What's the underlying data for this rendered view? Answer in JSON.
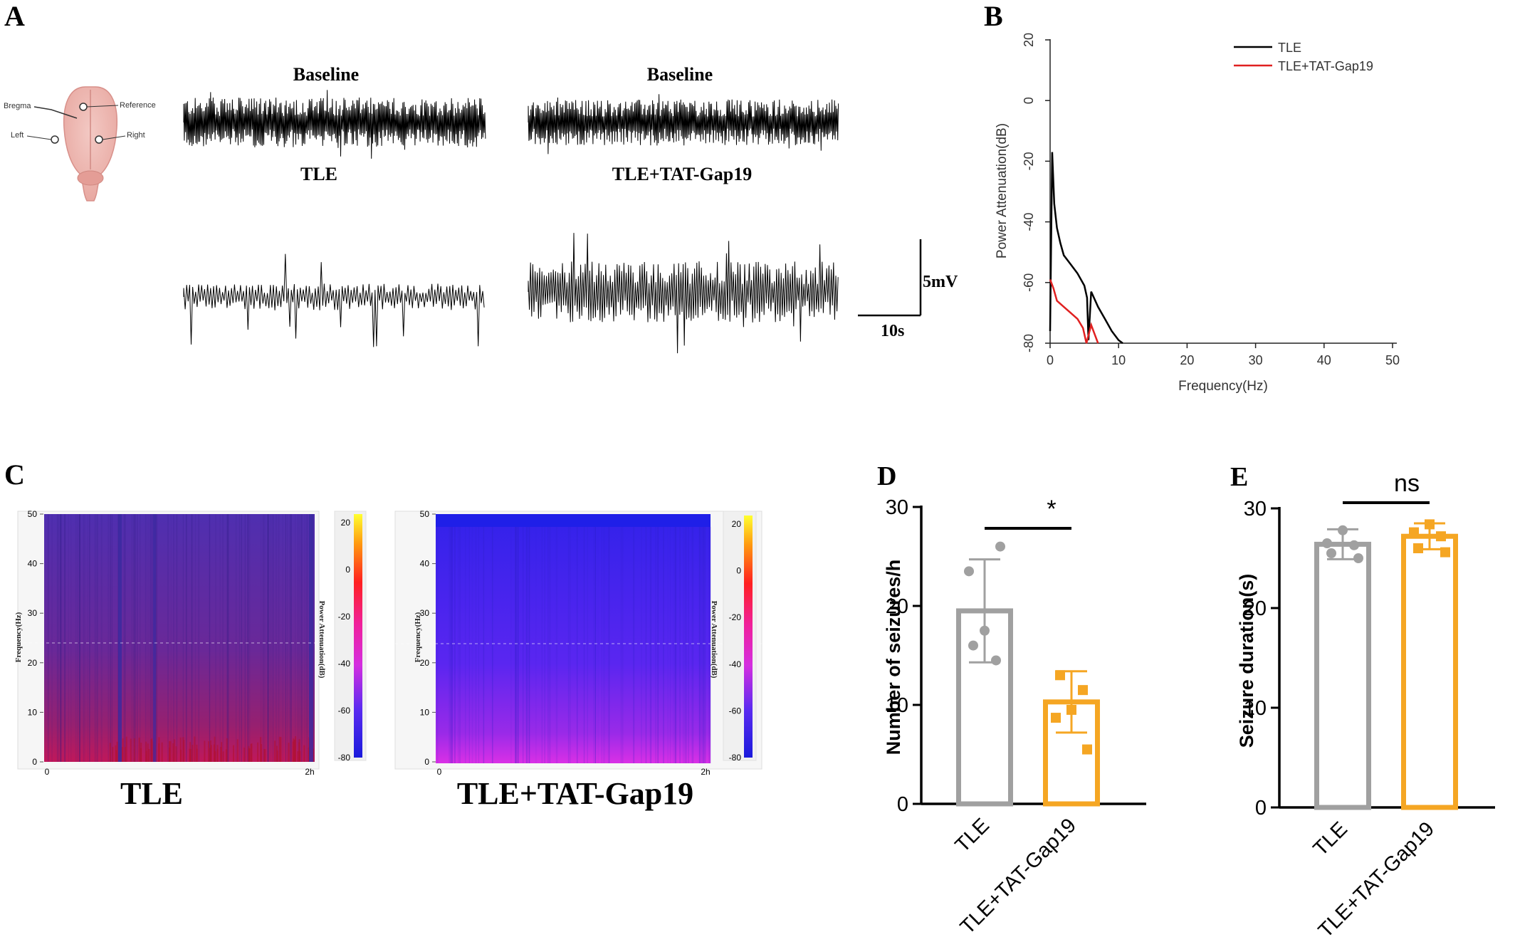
{
  "panels": {
    "A": {
      "letter": "A",
      "electrodes": [
        "Bregma",
        "Reference",
        "Left",
        "Right"
      ],
      "trace_titles": {
        "baseline_left": "Baseline",
        "baseline_right": "Baseline",
        "tle": "TLE",
        "tle_gap19": "TLE+TAT-Gap19"
      },
      "scale_bar": {
        "voltage": "5mV",
        "time": "10s"
      }
    },
    "B": {
      "letter": "B"
    },
    "C": {
      "letter": "C",
      "left_title": "TLE",
      "right_title": "TLE+TAT-Gap19",
      "y_axis_label": "Frequency(Hz)",
      "colorbar_label": "Power Attenuation(dB)",
      "y_ticks": [
        "0",
        "10",
        "20",
        "30",
        "40",
        "50"
      ],
      "x_ticks": [
        "0",
        "2h"
      ],
      "colorbar_ticks": [
        "20",
        "0",
        "-20",
        "-40",
        "-60",
        "-80"
      ],
      "colors": {
        "tle_top": "#5c2aa8",
        "tle_bottom": "#c0185a",
        "gap_top": "#3a22ee",
        "gap_bottom": "#d22ee0"
      }
    },
    "D": {
      "letter": "D"
    },
    "E": {
      "letter": "E"
    }
  },
  "chart_data": [
    {
      "id": "B",
      "type": "line",
      "xlabel": "Frequency(Hz)",
      "ylabel": "Power Attenuation(dB)",
      "xlim": [
        0,
        50
      ],
      "ylim": [
        -80,
        20
      ],
      "x_ticks": [
        "0",
        "10",
        "20",
        "30",
        "40",
        "50"
      ],
      "y_ticks": [
        "20",
        "0",
        "-20",
        "-40",
        "-60",
        "-80"
      ],
      "legend_position": "top-right",
      "series": [
        {
          "name": "TLE",
          "color": "#000000",
          "x": [
            0,
            0.3,
            0.6,
            1.0,
            1.5,
            2.0,
            3.0,
            4.0,
            5.0,
            5.4,
            5.6,
            6.0,
            7.0,
            8.0,
            9.0,
            10.0,
            10.6
          ],
          "y": [
            -76,
            -17,
            -34,
            -42,
            -47,
            -51,
            -54,
            -57,
            -61,
            -65,
            -79,
            -63,
            -68,
            -72,
            -76,
            -79,
            -80
          ]
        },
        {
          "name": "TLE+TAT-Gap19",
          "color": "#e02020",
          "x": [
            0,
            0.5,
            1.0,
            2.0,
            3.0,
            4.0,
            4.8,
            5.3,
            6.0,
            6.5,
            7.0
          ],
          "y": [
            -59,
            -62,
            -66,
            -68,
            -70,
            -72,
            -75,
            -80,
            -74,
            -77,
            -80
          ]
        }
      ]
    },
    {
      "id": "D",
      "type": "bar",
      "categories": [
        "TLE",
        "TLE+TAT-Gap19"
      ],
      "values": [
        19.5,
        10.3
      ],
      "error": [
        5.2,
        3.1
      ],
      "points": [
        [
          16,
          14.5,
          17.5,
          23.5,
          26
        ],
        [
          13,
          11.5,
          9.5,
          8.7,
          5.5
        ]
      ],
      "colors": [
        "#a0a0a0",
        "#f5a623"
      ],
      "ylabel": "Number of seizures/h",
      "ylim": [
        0,
        30
      ],
      "y_ticks": [
        "0",
        "10",
        "20",
        "30"
      ],
      "significance": "*"
    },
    {
      "id": "E",
      "type": "bar",
      "categories": [
        "TLE",
        "TLE+TAT-Gap19"
      ],
      "values": [
        26.4,
        27.2
      ],
      "error": [
        1.5,
        1.3
      ],
      "points": [
        [
          25.5,
          26.3,
          27.8,
          26.5,
          25.0
        ],
        [
          26.0,
          27.2,
          28.4,
          27.6,
          25.6
        ]
      ],
      "colors": [
        "#a0a0a0",
        "#f5a623"
      ],
      "ylabel": "Seizure duration(s)",
      "ylim": [
        0,
        30
      ],
      "y_ticks": [
        "0",
        "10",
        "20",
        "30"
      ],
      "significance": "ns"
    }
  ]
}
